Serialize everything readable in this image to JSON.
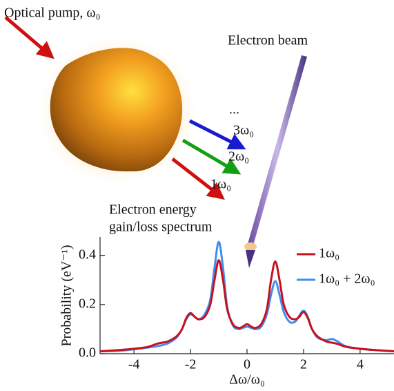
{
  "illustration": {
    "pump_label": "Optical pump, ω₀",
    "beam_label": "Electron beam",
    "harmonic_labels": [
      "...",
      "3ω₀",
      "2ω₀",
      "1ω₀"
    ],
    "spectrum_label": [
      "Electron energy",
      "gain/loss spectrum"
    ]
  },
  "chart_data": {
    "type": "line",
    "xlabel": "Δω/ω₀",
    "ylabel": "Probability (eV⁻¹)",
    "x": [
      -5.2,
      -4.5,
      -4,
      -3.5,
      -3.2,
      -3,
      -2.8,
      -2.5,
      -2.3,
      -2.15,
      -2,
      -1.85,
      -1.7,
      -1.5,
      -1.3,
      -1.15,
      -1,
      -0.85,
      -0.7,
      -0.5,
      -0.3,
      -0.15,
      0,
      0.15,
      0.3,
      0.5,
      0.7,
      0.85,
      1,
      1.15,
      1.3,
      1.5,
      1.7,
      1.85,
      2,
      2.15,
      2.3,
      2.5,
      2.8,
      3,
      3.2,
      3.5,
      4,
      4.5,
      5.2
    ],
    "series": [
      {
        "name": "1ω₀",
        "color": "#c8101e",
        "values": [
          0.01,
          0.015,
          0.02,
          0.028,
          0.04,
          0.045,
          0.05,
          0.07,
          0.1,
          0.145,
          0.165,
          0.15,
          0.14,
          0.15,
          0.2,
          0.3,
          0.38,
          0.3,
          0.18,
          0.12,
          0.105,
          0.11,
          0.12,
          0.11,
          0.105,
          0.12,
          0.18,
          0.3,
          0.375,
          0.3,
          0.2,
          0.15,
          0.14,
          0.15,
          0.17,
          0.145,
          0.1,
          0.07,
          0.05,
          0.045,
          0.04,
          0.028,
          0.02,
          0.015,
          0.01
        ]
      },
      {
        "name": "1ω₀ + 2ω₀",
        "color": "#3f8ef0",
        "values": [
          0.01,
          0.012,
          0.018,
          0.025,
          0.03,
          0.035,
          0.042,
          0.065,
          0.1,
          0.14,
          0.16,
          0.15,
          0.14,
          0.16,
          0.22,
          0.35,
          0.455,
          0.35,
          0.19,
          0.115,
          0.1,
          0.105,
          0.11,
          0.105,
          0.1,
          0.11,
          0.16,
          0.24,
          0.295,
          0.24,
          0.17,
          0.13,
          0.13,
          0.155,
          0.175,
          0.15,
          0.1,
          0.065,
          0.055,
          0.06,
          0.05,
          0.03,
          0.02,
          0.015,
          0.01
        ]
      }
    ],
    "xlim": [
      -5.2,
      5.2
    ],
    "ylim": [
      0,
      0.475
    ],
    "xticks": [
      -4,
      -2,
      0,
      2,
      4
    ],
    "yticks": [
      {
        "value": 0,
        "label": "0.0"
      },
      0.2,
      0.4
    ],
    "legend": "upper right"
  }
}
